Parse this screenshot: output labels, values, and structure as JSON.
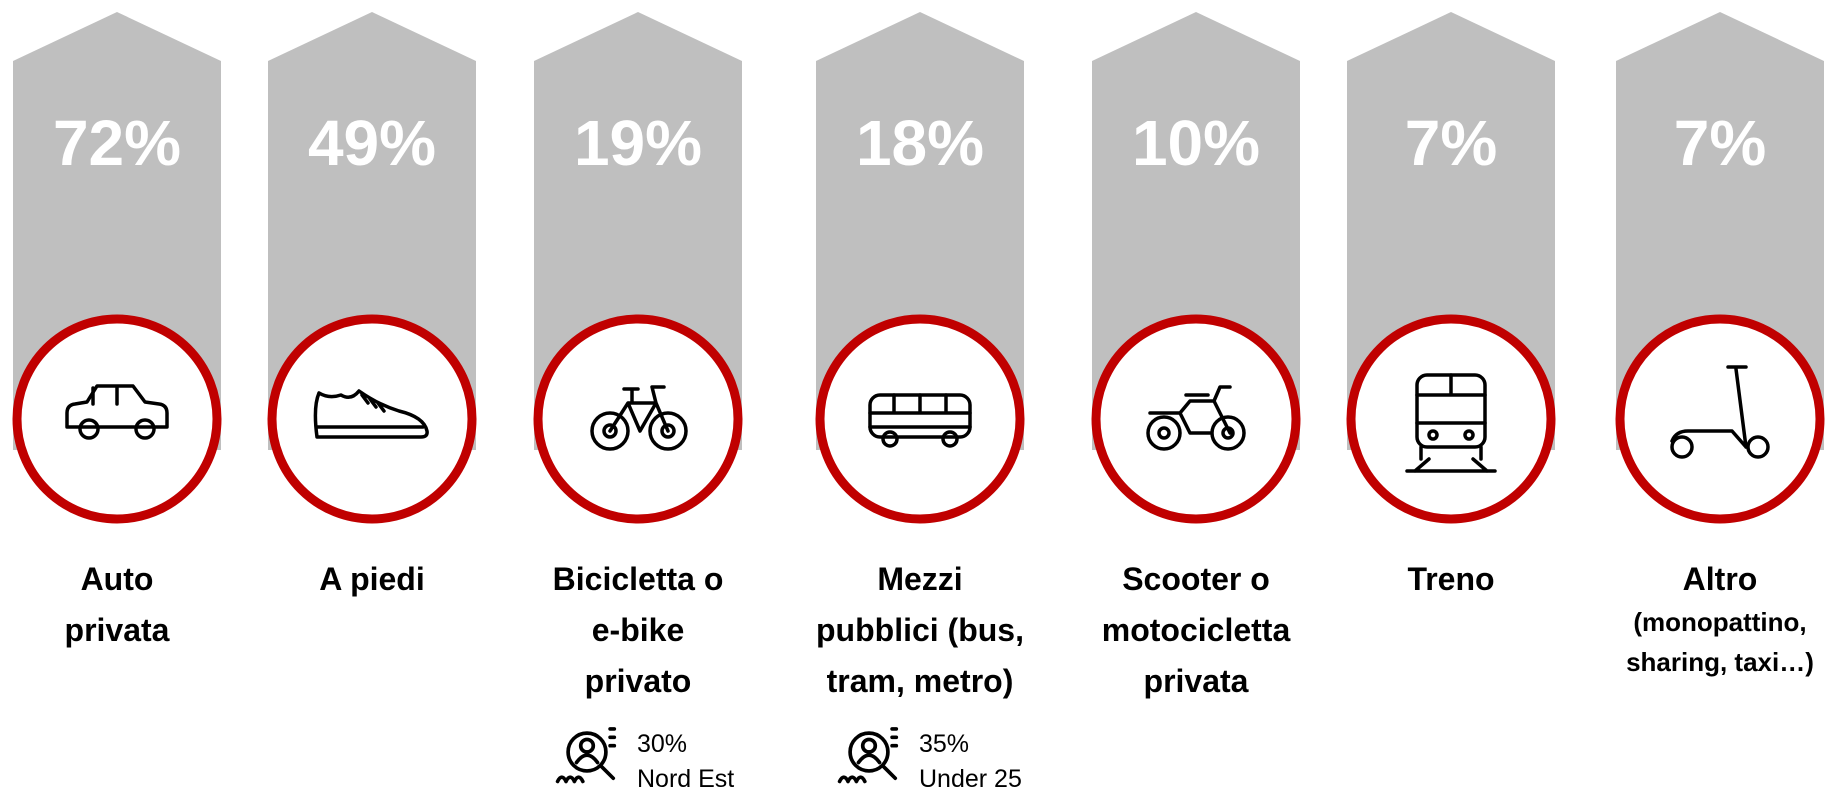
{
  "items": [
    {
      "value": "72%",
      "label": [
        "Auto",
        "privata"
      ]
    },
    {
      "value": "49%",
      "label": [
        "A piedi"
      ]
    },
    {
      "value": "19%",
      "label": [
        "Bicicletta o",
        "e-bike",
        "privato"
      ],
      "note": {
        "value": "30%",
        "text": "Nord Est"
      }
    },
    {
      "value": "18%",
      "label": [
        "Mezzi",
        "pubblici (bus,",
        "tram, metro)"
      ],
      "note": {
        "value": "35%",
        "text": "Under 25"
      }
    },
    {
      "value": "10%",
      "label": [
        "Scooter o",
        "motocicletta",
        "privata"
      ]
    },
    {
      "value": "7%",
      "label": [
        "Treno"
      ]
    },
    {
      "value": "7%",
      "label": [
        "Altro"
      ],
      "detail": [
        "(monopattino,",
        "sharing, taxi…)"
      ]
    }
  ]
}
